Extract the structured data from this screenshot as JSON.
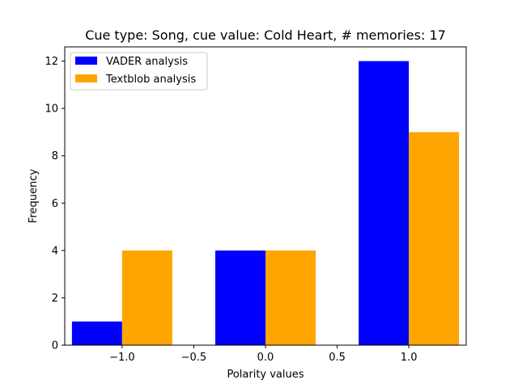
{
  "chart_data": {
    "type": "bar",
    "title": "Cue type: Song, cue value: Cold Heart, # memories: 17",
    "xlabel": "Polarity values",
    "ylabel": "Frequency",
    "xlim": [
      -1.4,
      1.4
    ],
    "ylim": [
      0,
      12.6
    ],
    "xticks": [
      -1.0,
      -0.5,
      0.0,
      0.5,
      1.0
    ],
    "xtick_labels": [
      "−1.0",
      "−0.5",
      "0.0",
      "0.5",
      "1.0"
    ],
    "yticks": [
      0,
      2,
      4,
      6,
      8,
      10,
      12
    ],
    "ytick_labels": [
      "0",
      "2",
      "4",
      "6",
      "8",
      "10",
      "12"
    ],
    "categories": [
      -1.0,
      0.0,
      1.0
    ],
    "bar_width": 0.35,
    "legend_position": "top-left",
    "grid": false,
    "series": [
      {
        "name": "VADER analysis",
        "color": "#0000ff",
        "values": [
          1,
          4,
          12
        ]
      },
      {
        "name": "Textblob analysis",
        "color": "#ffa500",
        "values": [
          4,
          4,
          9
        ]
      }
    ]
  }
}
